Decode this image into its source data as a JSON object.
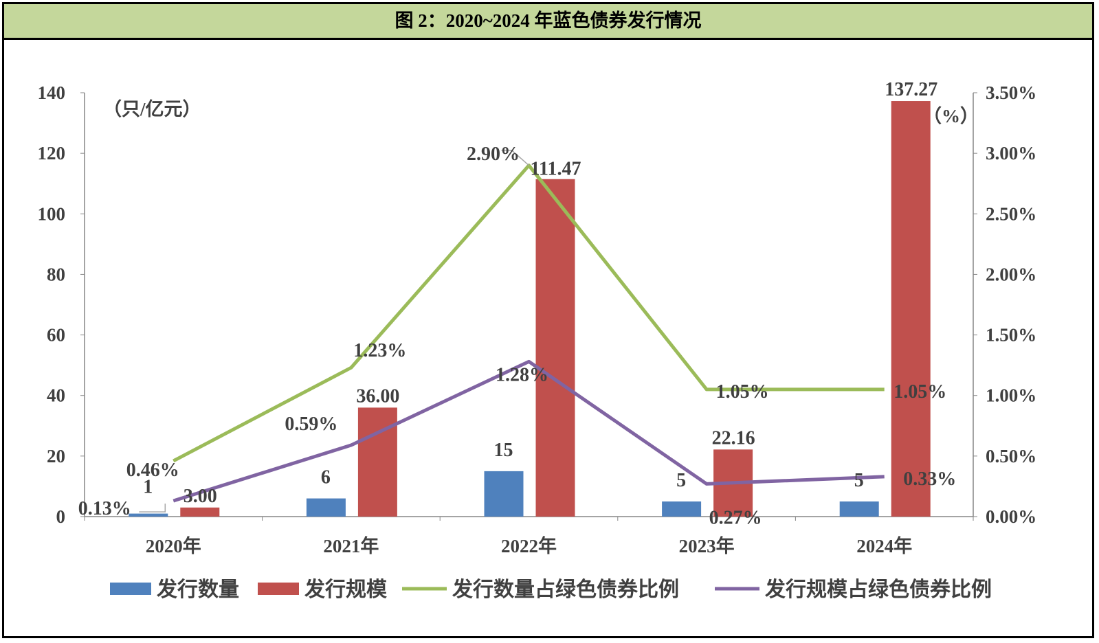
{
  "title": "图 2：2020~2024 年蓝色债券发行情况",
  "chart_data": {
    "type": "bar+line",
    "title": "图 2：2020~2024 年蓝色债券发行情况",
    "categories": [
      "2020年",
      "2021年",
      "2022年",
      "2023年",
      "2024年"
    ],
    "left_axis": {
      "unit_label": "（只/亿元）",
      "range": [
        0,
        140
      ],
      "ticks": [
        "0",
        "20",
        "40",
        "60",
        "80",
        "100",
        "120",
        "140"
      ]
    },
    "right_axis": {
      "unit_label": "（%）",
      "range": [
        0,
        3.5
      ],
      "ticks": [
        "0.00%",
        "0.50%",
        "1.00%",
        "1.50%",
        "2.00%",
        "2.50%",
        "3.00%",
        "3.50%"
      ]
    },
    "grid": false,
    "legend_position": "bottom",
    "series": [
      {
        "name": "发行数量",
        "type": "bar",
        "axis": "left",
        "color": "#4f81bd",
        "values": [
          1,
          6,
          15,
          5,
          5
        ],
        "labels": [
          "1",
          "6",
          "15",
          "5",
          "5"
        ]
      },
      {
        "name": "发行规模",
        "type": "bar",
        "axis": "left",
        "color": "#c0504d",
        "values": [
          3.0,
          36.0,
          111.47,
          22.16,
          137.27
        ],
        "labels": [
          "3.00",
          "36.00",
          "111.47",
          "22.16",
          "137.27"
        ]
      },
      {
        "name": "发行数量占绿色债券比例",
        "type": "line",
        "axis": "right",
        "color": "#9bbb59",
        "values": [
          0.46,
          1.23,
          2.9,
          1.05,
          1.05
        ],
        "labels": [
          "0.46%",
          "1.23%",
          "2.90%",
          "1.05%",
          "1.05%"
        ]
      },
      {
        "name": "发行规模占绿色债券比例",
        "type": "line",
        "axis": "right",
        "color": "#8064a2",
        "values": [
          0.13,
          0.59,
          1.28,
          0.27,
          0.33
        ],
        "labels": [
          "0.13%",
          "0.59%",
          "1.28%",
          "0.27%",
          "0.33%"
        ]
      }
    ]
  }
}
